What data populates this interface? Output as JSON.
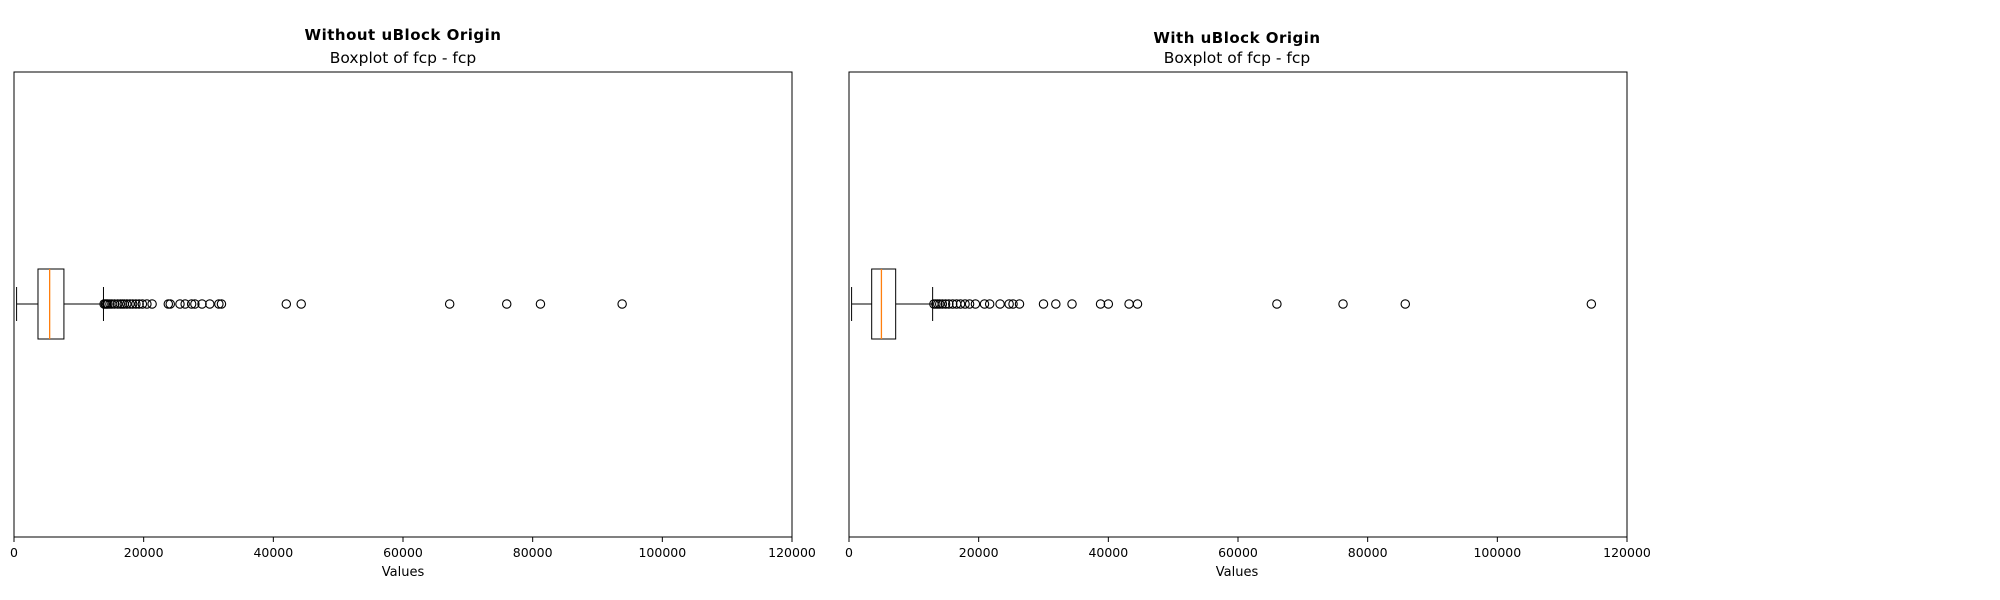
{
  "chart_data": [
    {
      "type": "boxplot",
      "heading": "Without uBlock Origin",
      "title": "Boxplot of fcp - fcp",
      "xlabel": "Values",
      "ylabel": "",
      "xlim": [
        0,
        120000
      ],
      "xticks": [
        0,
        20000,
        40000,
        60000,
        80000,
        100000,
        120000
      ],
      "xtick_labels": [
        "0",
        "20000",
        "40000",
        "60000",
        "80000",
        "100000",
        "120000"
      ],
      "grid": false,
      "legend": "none",
      "box": {
        "whisker_low": 400,
        "q1": 3700,
        "median": 5500,
        "q3": 7700,
        "whisker_high": 13800
      },
      "outliers": [
        13900,
        14100,
        14300,
        14500,
        14800,
        15100,
        15500,
        16000,
        16400,
        16700,
        17000,
        17400,
        17900,
        18300,
        18800,
        19300,
        19800,
        20500,
        21300,
        23800,
        24100,
        25600,
        26400,
        27400,
        27900,
        29000,
        30200,
        31600,
        32000,
        42000,
        44300,
        67200,
        76000,
        81200,
        93800
      ],
      "colors": {
        "box": "#000000",
        "median": "#ff7f0e",
        "outlier": "#000000"
      }
    },
    {
      "type": "boxplot",
      "heading": "With uBlock Origin",
      "title": "Boxplot of fcp - fcp",
      "xlabel": "Values",
      "ylabel": "",
      "xlim": [
        0,
        120000
      ],
      "xticks": [
        0,
        20000,
        40000,
        60000,
        80000,
        100000,
        120000
      ],
      "xtick_labels": [
        "0",
        "20000",
        "40000",
        "60000",
        "80000",
        "100000",
        "120000"
      ],
      "grid": false,
      "legend": "none",
      "box": {
        "whisker_low": 400,
        "q1": 3500,
        "median": 5000,
        "q3": 7200,
        "whisker_high": 12900
      },
      "outliers": [
        13100,
        13400,
        13700,
        14000,
        14400,
        14900,
        15400,
        16000,
        16600,
        17200,
        17900,
        18600,
        19500,
        20900,
        21700,
        23300,
        24700,
        25300,
        26300,
        30000,
        31900,
        34400,
        38800,
        40000,
        43200,
        44500,
        66000,
        76200,
        85800,
        114500
      ],
      "colors": {
        "box": "#000000",
        "median": "#ff7f0e",
        "outlier": "#000000"
      }
    }
  ]
}
